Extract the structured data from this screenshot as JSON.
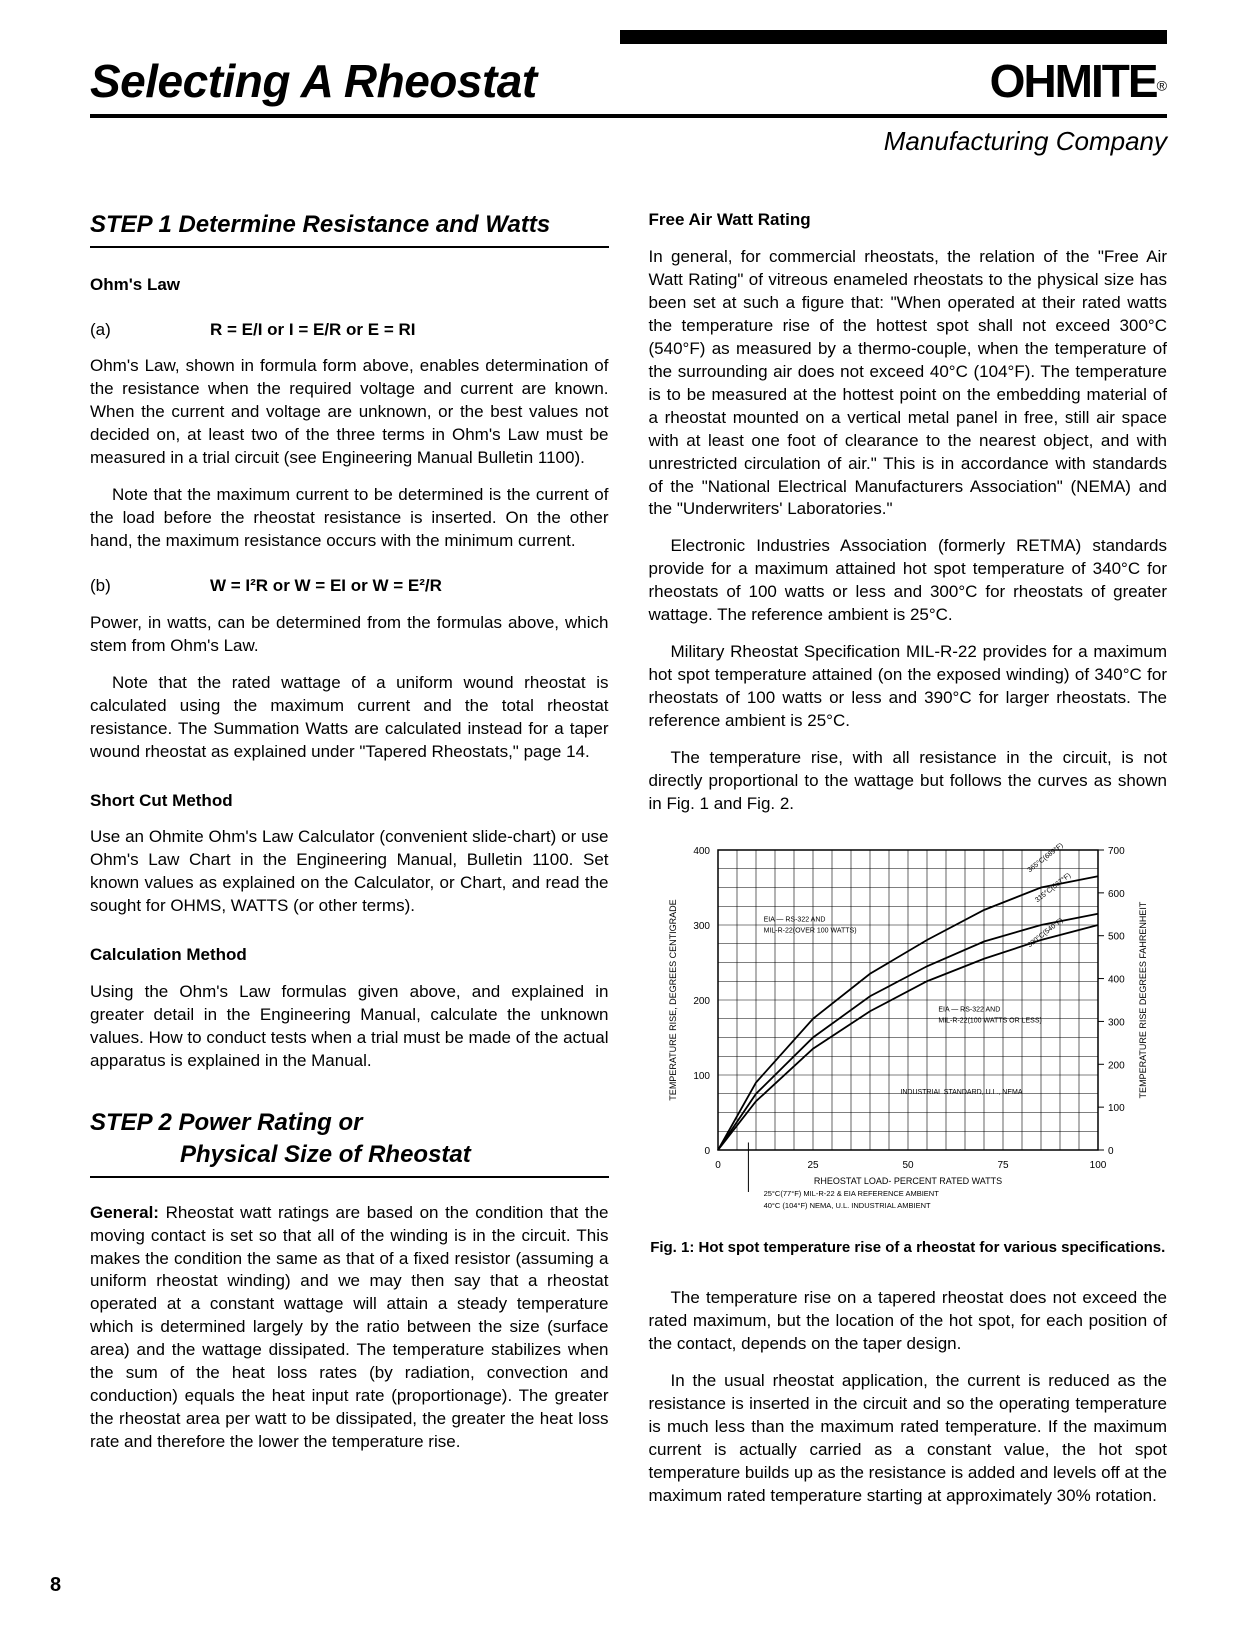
{
  "header": {
    "main_title": "Selecting A Rheostat",
    "brand_name": "OHMITE",
    "brand_reg": "®",
    "sub_brand": "Manufacturing Company"
  },
  "left": {
    "step1": "STEP 1 Determine Resistance and Watts",
    "ohms_law_head": "Ohm's Law",
    "a_label": "(a)",
    "a_formula": "R = E/I or I = E/R or E = RI",
    "p1": "Ohm's Law, shown in formula form above, enables determination of the resistance when the required voltage and current are known. When the current and voltage are unknown, or the best values not decided on, at least two of the three terms in Ohm's Law must be measured in a trial circuit (see Engineering Manual Bulletin 1100).",
    "p2": "Note that the maximum current to be determined is the current of the load before the rheostat resistance is inserted. On the other hand, the maximum resistance occurs with the minimum current.",
    "b_label": "(b)",
    "b_formula": "W = I²R or W = EI or W = E²/R",
    "p3": "Power, in watts, can be determined from the formulas above, which stem from Ohm's Law.",
    "p4": "Note that the rated wattage of a uniform wound rheostat is calculated using the maximum current and the total rheostat resistance. The Summation Watts are calculated instead for a taper wound rheostat as explained under \"Tapered Rheostats,\" page 14.",
    "shortcut_head": "Short Cut Method",
    "p5": "Use an Ohmite Ohm's Law Calculator (convenient slide-chart) or use Ohm's Law Chart in the Engineering Manual, Bulletin 1100. Set known values as explained on the Calculator, or Chart, and read the sought for OHMS, WATTS (or other terms).",
    "calc_head": "Calculation Method",
    "p6": "Using the Ohm's Law formulas given above, and explained in greater detail in the Engineering Manual, calculate the unknown values. How to conduct tests when a trial must be made of the actual apparatus is explained in the Manual.",
    "step2": "STEP 2 Power Rating or",
    "step2b": "Physical Size of Rheostat",
    "general_label": "General:",
    "p7": " Rheostat watt ratings are based on the condition that the moving contact is set so that all of the winding is in the circuit. This makes the condition the same as that of a fixed resistor (assuming a uniform rheostat winding) and we may then say that a rheostat operated at a constant wattage will attain a steady temperature which is determined largely by the ratio between the size (surface area) and the wattage dissipated. The temperature stabilizes when the sum of the heat loss rates (by radiation, convection and conduction) equals the heat input rate (proportionage). The greater the rheostat area per watt to be dissipated, the greater the heat loss rate and therefore the lower the temperature rise."
  },
  "right": {
    "free_air_head": "Free Air Watt Rating",
    "p1": "In general, for commercial rheostats, the relation of the \"Free Air Watt Rating\" of vitreous enameled rheostats to the physical size has been set at such a figure that: \"When operated at their rated watts the temperature rise of the hottest spot shall not exceed 300°C (540°F) as measured by a thermo-couple, when the temperature of the surrounding air does not exceed 40°C (104°F). The temperature is to be measured at the hottest point on the embedding material of a rheostat mounted on a vertical metal panel in free, still air space with at least one foot of clearance to the nearest object, and with unrestricted circulation of air.\" This is in accordance with standards of the \"National Electrical Manufacturers Association\" (NEMA) and the \"Underwriters' Laboratories.\"",
    "p2": "Electronic Industries Association (formerly RETMA) standards provide for a maximum attained hot spot temperature of 340°C for rheostats of 100 watts or less and 300°C for rheostats of greater wattage. The reference ambient is 25°C.",
    "p3": "Military Rheostat Specification MIL-R-22 provides for a maximum hot spot temperature attained (on the exposed winding) of 340°C for rheostats of 100 watts or less and 390°C for larger rheostats. The reference ambient is 25°C.",
    "p4": "The temperature rise, with all resistance in the circuit, is not directly proportional to the wattage but follows the curves as shown in Fig. 1 and Fig. 2.",
    "p5": "The temperature rise on a tapered rheostat does not exceed the rated maximum, but the location of the hot spot, for each position of the contact, depends on the taper design.",
    "p6": "In the usual rheostat application, the current is reduced as the resistance is inserted in the circuit and so the operating temperature is much less than the maximum rated temperature. If the maximum current is actually carried as a constant value, the hot spot temperature builds up as the resistance is added and levels off at the maximum rated temperature starting at approximately 30% rotation."
  },
  "chart": {
    "caption": "Fig. 1: Hot spot temperature rise of a rheostat for various specifications.",
    "x_label": "RHEOSTAT LOAD- PERCENT RATED WATTS",
    "y_label_left": "TEMPERATURE RISE, DEGREES CENTIGRADE",
    "y_label_right": "TEMPERATURE RISE DEGREES FAHRENHEIT",
    "x_ticks": [
      0,
      25,
      50,
      75,
      100
    ],
    "y_ticks_left": [
      0,
      100,
      200,
      300,
      400
    ],
    "y_ticks_right": [
      0,
      100,
      200,
      300,
      400,
      500,
      600,
      700
    ],
    "xlim": [
      0,
      100
    ],
    "ylim_left": [
      0,
      400
    ],
    "ylim_right": [
      0,
      700
    ],
    "annotation_top": "EIA — RS-322 AND MIL-R-22(OVER 100 WATTS)",
    "annotation_mid": "EIA — RS-322 AND MIL-R-22(100 WATTS OR LESS)",
    "annotation_low": "INDUSTRIAL STANDARD, U.L., NEMA",
    "annotation_ref1": "25°C(77°F) MIL-R-22 & EIA REFERENCE AMBIENT",
    "annotation_ref2": "40°C (104°F) NEMA, U.L. INDUSTRIAL AMBIENT",
    "diag_365": "365°C(689°F)",
    "diag_315": "315°C(567°F)",
    "diag_300": "300°C(540°F)",
    "curves": {
      "top": {
        "x": [
          0,
          10,
          25,
          40,
          55,
          70,
          85,
          100
        ],
        "y": [
          0,
          90,
          175,
          235,
          280,
          320,
          350,
          365
        ]
      },
      "middle": {
        "x": [
          0,
          10,
          25,
          40,
          55,
          70,
          85,
          100
        ],
        "y": [
          0,
          75,
          150,
          205,
          245,
          278,
          300,
          315
        ]
      },
      "bottom": {
        "x": [
          0,
          10,
          25,
          40,
          55,
          70,
          85,
          100
        ],
        "y": [
          0,
          65,
          135,
          185,
          225,
          255,
          280,
          300
        ]
      }
    },
    "style": {
      "background_color": "#ffffff",
      "grid_color": "#000000",
      "curve_color": "#000000",
      "line_width": 1.8,
      "grid_width": 0.6,
      "font_size_labels": 9,
      "font_size_ticks": 10
    }
  },
  "page_number": "8"
}
